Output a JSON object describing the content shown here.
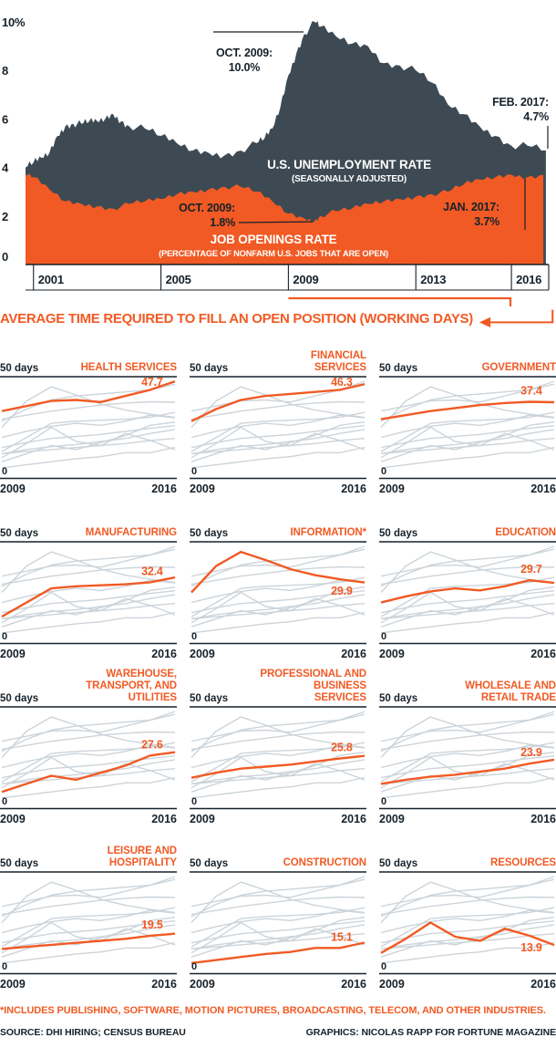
{
  "page": {
    "footnote": "*INCLUDES PUBLISHING, SOFTWARE, MOTION PICTURES, BROADCASTING, TELECOM, AND OTHER INDUSTRIES.",
    "source": "SOURCE: DHI HIRING; CENSUS BUREAU",
    "credit": "GRAPHICS: NICOLAS RAPP FOR FORTUNE MAGAZINE"
  },
  "colors": {
    "orange": "#f15a24",
    "slate": "#3d4a53",
    "gray_line": "#ccd4da",
    "ink": "#16212a"
  },
  "chart_data": [
    {
      "type": "area",
      "title": "U.S. unemployment rate vs. job openings rate, 2001-2017",
      "ylim": [
        0,
        10
      ],
      "ytick_values": [
        10,
        8,
        6,
        4,
        2,
        0
      ],
      "ytick_labels": [
        "10%",
        "8",
        "6",
        "4",
        "2",
        "0"
      ],
      "x_range": [
        2000.75,
        2017.17
      ],
      "xtick_values": [
        2001,
        2005,
        2009,
        2013,
        2016
      ],
      "xtick_labels": [
        "2001",
        "2005",
        "2009",
        "2013",
        "2016"
      ],
      "series": [
        {
          "name": "U.S. UNEMPLOYMENT RATE",
          "subtitle": "(SEASONALLY ADJUSTED)",
          "color_key": "slate",
          "x": [
            2000.75,
            2001,
            2001.25,
            2001.5,
            2001.75,
            2002,
            2002.25,
            2002.5,
            2002.75,
            2003,
            2003.25,
            2003.5,
            2003.75,
            2004,
            2004.5,
            2005,
            2005.5,
            2006,
            2006.5,
            2007,
            2007.5,
            2008,
            2008.25,
            2008.5,
            2008.75,
            2009,
            2009.25,
            2009.5,
            2009.83,
            2010,
            2010.5,
            2011,
            2011.5,
            2012,
            2012.5,
            2013,
            2013.5,
            2014,
            2014.5,
            2015,
            2015.5,
            2016,
            2016.5,
            2017.08
          ],
          "values": [
            4.0,
            4.2,
            4.4,
            4.6,
            5.3,
            5.7,
            5.8,
            5.8,
            5.9,
            5.9,
            6.0,
            6.2,
            5.9,
            5.7,
            5.6,
            5.3,
            5.0,
            4.7,
            4.6,
            4.5,
            4.7,
            5.0,
            5.2,
            5.6,
            6.5,
            7.8,
            8.7,
            9.5,
            10.0,
            9.8,
            9.4,
            9.1,
            9.0,
            8.3,
            8.2,
            8.0,
            7.5,
            6.6,
            6.2,
            5.7,
            5.3,
            4.9,
            4.9,
            4.7
          ]
        },
        {
          "name": "JOB OPENINGS RATE",
          "subtitle": "(PERCENTAGE OF NONFARM U.S. JOBS THAT ARE OPEN)",
          "color_key": "orange",
          "x": [
            2000.75,
            2001,
            2001.5,
            2002,
            2002.5,
            2003,
            2003.5,
            2004,
            2004.5,
            2005,
            2005.5,
            2006,
            2006.5,
            2007,
            2007.5,
            2008,
            2008.5,
            2009,
            2009.5,
            2009.83,
            2010,
            2010.5,
            2011,
            2011.5,
            2012,
            2012.5,
            2013,
            2013.5,
            2014,
            2014.5,
            2015,
            2015.5,
            2016,
            2016.5,
            2017
          ],
          "values": [
            3.7,
            3.6,
            3.1,
            2.6,
            2.5,
            2.4,
            2.3,
            2.5,
            2.6,
            2.7,
            2.9,
            3.0,
            3.1,
            3.2,
            3.2,
            3.0,
            2.6,
            2.1,
            1.9,
            1.8,
            2.0,
            2.2,
            2.3,
            2.5,
            2.6,
            2.7,
            2.8,
            2.9,
            3.0,
            3.3,
            3.5,
            3.6,
            3.7,
            3.6,
            3.7
          ]
        }
      ],
      "annotations": [
        {
          "label_lines": [
            "OCT. 2009:",
            "10.0%"
          ],
          "series": "unemployment",
          "x": 2009.83,
          "value": 10.0
        },
        {
          "label_lines": [
            "FEB. 2017:",
            "4.7%"
          ],
          "series": "unemployment",
          "x": 2017.08,
          "value": 4.7
        },
        {
          "label_lines": [
            "OCT. 2009:",
            "1.8%"
          ],
          "series": "job_openings",
          "x": 2009.83,
          "value": 1.8
        },
        {
          "label_lines": [
            "JAN. 2017:",
            "3.7%"
          ],
          "series": "job_openings",
          "x": 2017.0,
          "value": 3.7
        }
      ]
    },
    {
      "type": "line",
      "title": "AVERAGE TIME REQUIRED TO FILL AN OPEN POSITION (WORKING DAYS)",
      "x": [
        2009,
        2010,
        2011,
        2012,
        2013,
        2014,
        2015,
        2016
      ],
      "ylim": [
        0,
        50
      ],
      "y_top_label": "50 days",
      "y_bottom_label": "0",
      "x_start_label": "2009",
      "x_end_label": "2016",
      "series": [
        {
          "name": "HEALTH SERVICES",
          "value_label": "47.7",
          "values": [
            33,
            35.5,
            38,
            38.5,
            37.5,
            40.5,
            43.5,
            47.7
          ]
        },
        {
          "name": "FINANCIAL SERVICES",
          "value_label": "46.3",
          "values": [
            28,
            34,
            38.5,
            40.5,
            41.5,
            42.5,
            43.5,
            46.3
          ]
        },
        {
          "name": "GOVERNMENT",
          "value_label": "37.4",
          "values": [
            29,
            31,
            33,
            34.5,
            36,
            37,
            37.6,
            37.4
          ]
        },
        {
          "name": "MANUFACTURING",
          "value_label": "32.4",
          "values": [
            13,
            20,
            27,
            28,
            28.5,
            29,
            30,
            32.4
          ]
        },
        {
          "name": "INFORMATION*",
          "value_label": "29.9",
          "values": [
            25,
            38,
            45,
            41,
            36.5,
            33.5,
            31.5,
            29.9
          ]
        },
        {
          "name": "EDUCATION",
          "value_label": "29.7",
          "values": [
            20,
            23,
            25.5,
            27,
            26,
            28,
            31,
            29.7
          ]
        },
        {
          "name": "WAREHOUSE, TRANSPORT, AND UTILITIES",
          "value_label": "27.6",
          "values": [
            8,
            12,
            16,
            14,
            17.5,
            21,
            26,
            27.6
          ]
        },
        {
          "name": "PROFESSIONAL AND BUSINESS SERVICES",
          "value_label": "25.8",
          "values": [
            15,
            17.5,
            19.5,
            20.5,
            21.5,
            23,
            24.5,
            25.8
          ]
        },
        {
          "name": "WHOLESALE AND RETAIL TRADE",
          "value_label": "23.9",
          "values": [
            12,
            14,
            15.5,
            16.5,
            18,
            19.5,
            22,
            23.9
          ]
        },
        {
          "name": "LEISURE AND HOSPITALITY",
          "value_label": "19.5",
          "values": [
            12,
            13,
            14,
            15,
            16,
            17,
            18.5,
            19.5
          ]
        },
        {
          "name": "CONSTRUCTION",
          "value_label": "15.1",
          "values": [
            5,
            6.5,
            8,
            9.5,
            10.5,
            12.5,
            12.5,
            15.1
          ]
        },
        {
          "name": "RESOURCES",
          "value_label": "13.9",
          "values": [
            10,
            17,
            25,
            18,
            16,
            22,
            18.5,
            13.9
          ]
        }
      ]
    }
  ]
}
